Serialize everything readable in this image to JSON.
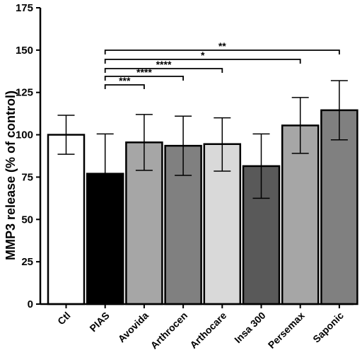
{
  "chart_data": {
    "type": "bar",
    "title": "",
    "xlabel": "",
    "ylabel": "MMP3 release (% of control)",
    "ylim": [
      0,
      175
    ],
    "yticks": [
      "0",
      "25",
      "50",
      "75",
      "100",
      "125",
      "150",
      "175"
    ],
    "grid": false,
    "categories": [
      "Ctl",
      "PIAS",
      "Avovida",
      "Arthrocen",
      "Arthocare",
      "Insa 300",
      "Persemax",
      "Saponic"
    ],
    "values": [
      100,
      77,
      95.5,
      93.5,
      94.5,
      81.5,
      105.5,
      114.5
    ],
    "error_low": [
      88.5,
      53.5,
      79,
      76,
      78.5,
      62.5,
      89,
      97
    ],
    "error_high": [
      111.5,
      100.5,
      112,
      111,
      110,
      100.5,
      122,
      132
    ],
    "bar_colors": [
      "#ffffff",
      "#000000",
      "#a6a6a6",
      "#808080",
      "#d9d9d9",
      "#595959",
      "#a6a6a6",
      "#808080"
    ],
    "significance": [
      {
        "from": "PIAS",
        "to": "Saponic",
        "label": "**"
      },
      {
        "from": "PIAS",
        "to": "Persemax",
        "label": "*"
      },
      {
        "from": "PIAS",
        "to": "Arthocare",
        "label": "****"
      },
      {
        "from": "PIAS",
        "to": "Arthrocen",
        "label": "****"
      },
      {
        "from": "PIAS",
        "to": "Avovida",
        "label": "***"
      }
    ]
  }
}
